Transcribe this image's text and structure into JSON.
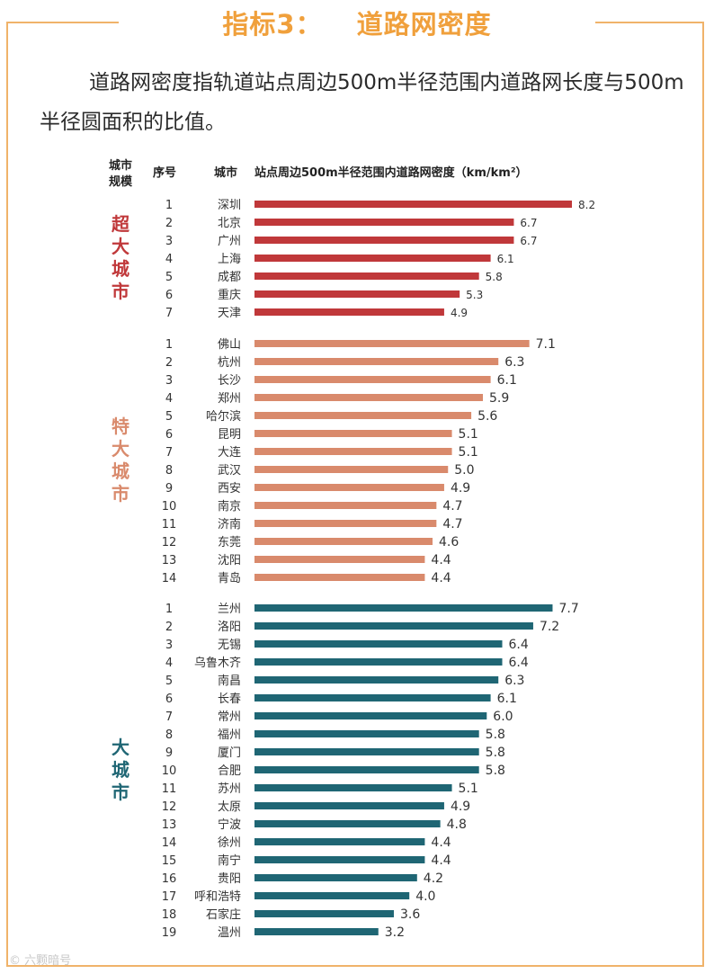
{
  "title": {
    "prefix": "指标3：",
    "main": "道路网密度"
  },
  "description": "道路网密度指轨道站点周边500m半径范围内道路网长度与500m半径圆面积的比值。",
  "headers": {
    "scale_line1": "城市",
    "scale_line2": "规模",
    "seq": "序号",
    "city": "城市",
    "metric": "站点周边500m半径范围内道路网密度（km/km²）"
  },
  "colors": {
    "super": "#c0383a",
    "mega": "#d98a6c",
    "large": "#1f6674",
    "accent": "#f0a03c"
  },
  "watermark": "© 六颗暗号",
  "chart_data": {
    "type": "bar",
    "orientation": "horizontal",
    "title": "站点周边500m半径范围内道路网密度（km/km²）",
    "xlim": [
      0,
      8.5
    ],
    "groups": [
      {
        "name": "超大城市",
        "label_chars": [
          "超",
          "大",
          "城",
          "市"
        ],
        "color": "#c0383a",
        "cities": [
          "深圳",
          "北京",
          "广州",
          "上海",
          "成都",
          "重庆",
          "天津"
        ],
        "values": [
          8.2,
          6.7,
          6.7,
          6.1,
          5.8,
          5.3,
          4.9
        ],
        "labels": [
          "8.2",
          "6.7",
          "6.7",
          "6.1",
          "5.8",
          "5.3",
          "4.9"
        ]
      },
      {
        "name": "特大城市",
        "label_chars": [
          "特",
          "大",
          "城",
          "市"
        ],
        "color": "#d98a6c",
        "cities": [
          "佛山",
          "杭州",
          "长沙",
          "郑州",
          "哈尔滨",
          "昆明",
          "大连",
          "武汉",
          "西安",
          "南京",
          "济南",
          "东莞",
          "沈阳",
          "青岛"
        ],
        "values": [
          7.1,
          6.3,
          6.1,
          5.9,
          5.6,
          5.1,
          5.1,
          5.0,
          4.9,
          4.7,
          4.7,
          4.6,
          4.4,
          4.4
        ],
        "labels": [
          "7.1",
          "6.3",
          "6.1",
          "5.9",
          "5.6",
          "5.1",
          "5.1",
          "5.0",
          "4.9",
          "4.7",
          "4.7",
          "4.6",
          "4.4",
          "4.4"
        ]
      },
      {
        "name": "大城市",
        "label_chars": [
          "大",
          "城",
          "市"
        ],
        "color": "#1f6674",
        "cities": [
          "兰州",
          "洛阳",
          "无锡",
          "乌鲁木齐",
          "南昌",
          "长春",
          "常州",
          "福州",
          "厦门",
          "合肥",
          "苏州",
          "太原",
          "宁波",
          "徐州",
          "南宁",
          "贵阳",
          "呼和浩特",
          "石家庄",
          "温州"
        ],
        "values": [
          7.7,
          7.2,
          6.4,
          6.4,
          6.3,
          6.1,
          6.0,
          5.8,
          5.8,
          5.8,
          5.1,
          4.9,
          4.8,
          4.4,
          4.4,
          4.2,
          4.0,
          3.6,
          3.2
        ],
        "labels": [
          "7.7",
          "7.2",
          "6.4",
          "6.4",
          "6.3",
          "6.1",
          "6.0",
          "5.8",
          "5.8",
          "5.8",
          "5.1",
          "4.9",
          "4.8",
          "4.4",
          "4.4",
          "4.2",
          "4.0",
          "3.6",
          "3.2"
        ]
      }
    ]
  }
}
